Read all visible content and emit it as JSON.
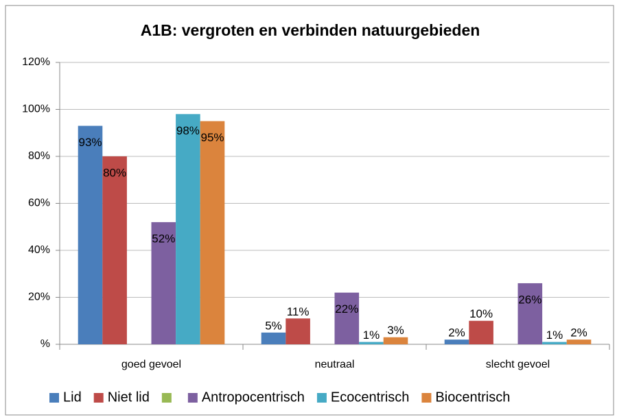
{
  "chart_data": {
    "type": "bar",
    "title": "A1B: vergroten en verbinden natuurgebieden",
    "categories": [
      "goed gevoel",
      "neutraal",
      "slecht gevoel"
    ],
    "series": [
      {
        "name": "Lid",
        "color": "#4a7ebb",
        "values": [
          93,
          5,
          2
        ],
        "value_labels": [
          "93%",
          "5%",
          "2%"
        ]
      },
      {
        "name": "Niet lid",
        "color": "#be4b48",
        "values": [
          80,
          11,
          10
        ],
        "value_labels": [
          "80%",
          "11%",
          "10%"
        ]
      },
      {
        "name": null,
        "color": "#98b954",
        "values": [
          null,
          null,
          null
        ]
      },
      {
        "name": "Antropocentrisch",
        "color": "#7d60a0",
        "values": [
          52,
          22,
          26
        ],
        "value_labels": [
          "52%",
          "22%",
          "26%"
        ]
      },
      {
        "name": "Ecocentrisch",
        "color": "#46aac5",
        "values": [
          98,
          1,
          1
        ],
        "value_labels": [
          "98%",
          "1%",
          "1%"
        ]
      },
      {
        "name": "Biocentrisch",
        "color": "#db843d",
        "values": [
          95,
          3,
          2
        ],
        "value_labels": [
          "95%",
          "3%",
          "2%"
        ]
      }
    ],
    "ylim": [
      0,
      120
    ],
    "yticks": [
      {
        "value": 0,
        "label": "%"
      },
      {
        "value": 20,
        "label": "20%"
      },
      {
        "value": 40,
        "label": "40%"
      },
      {
        "value": 60,
        "label": "60%"
      },
      {
        "value": 80,
        "label": "80%"
      },
      {
        "value": 100,
        "label": "100%"
      },
      {
        "value": 120,
        "label": "120%"
      }
    ],
    "grid": true,
    "legend": "bottom"
  }
}
